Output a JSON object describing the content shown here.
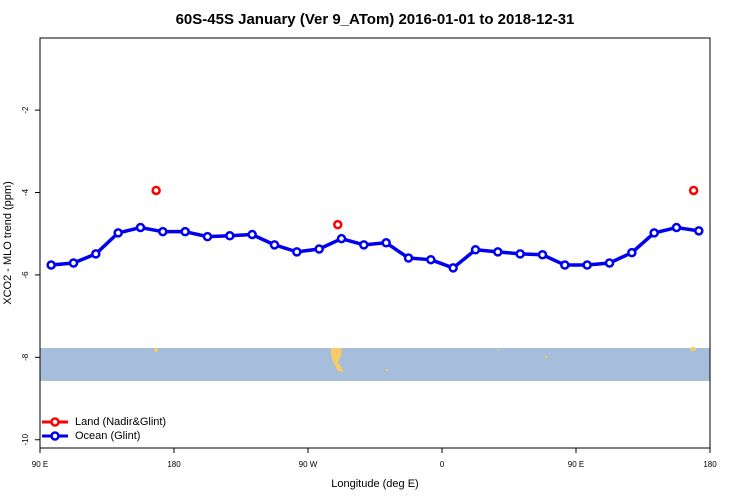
{
  "chart_data": {
    "type": "line",
    "title": "60S-45S January (Ver 9_ATom)   2016-01-01 to 2018-12-31",
    "x_label": "Longitude (deg E)",
    "y_label": "XCO2 - MLO trend (ppm)",
    "xlim": [
      90,
      540
    ],
    "xticks": [
      {
        "value": 90,
        "label": "90 E"
      },
      180,
      {
        "value": 270,
        "label": "90 W"
      },
      {
        "value": 360,
        "label": "0"
      },
      {
        "value": 450,
        "label": "90 E"
      },
      {
        "value": 540,
        "label": "180"
      }
    ],
    "ylim": [
      -10.2,
      -0.25
    ],
    "yticks": [
      -2,
      -4,
      -6,
      -8,
      -10
    ],
    "legend": "bottom-left",
    "series": [
      {
        "name": "Land (Nadir&Glint)",
        "color": "#ff0000",
        "style": "points",
        "x": [
          168,
          290,
          529
        ],
        "values": [
          -3.95,
          -4.78,
          -3.95
        ]
      },
      {
        "name": "Ocean (Glint)",
        "color": "#0000ee",
        "style": "line+points",
        "x": [
          97.5,
          112.5,
          127.5,
          142.5,
          157.5,
          172.5,
          187.5,
          202.5,
          217.5,
          232.5,
          247.5,
          262.5,
          277.5,
          292.5,
          307.5,
          322.5,
          337.5,
          352.5,
          367.5,
          382.5,
          397.5,
          412.5,
          427.5,
          442.5,
          457.5,
          472.5,
          487.5,
          502.5,
          517.5,
          532.5
        ],
        "values": [
          -5.76,
          -5.71,
          -5.49,
          -4.98,
          -4.85,
          -4.95,
          -4.95,
          -5.07,
          -5.05,
          -5.02,
          -5.27,
          -5.44,
          -5.37,
          -5.12,
          -5.27,
          -5.22,
          -5.59,
          -5.63,
          -5.83,
          -5.39,
          -5.44,
          -5.49,
          -5.51,
          -5.76,
          -5.76,
          -5.71,
          -5.46,
          -4.98,
          -4.85,
          -4.93
        ]
      }
    ]
  }
}
